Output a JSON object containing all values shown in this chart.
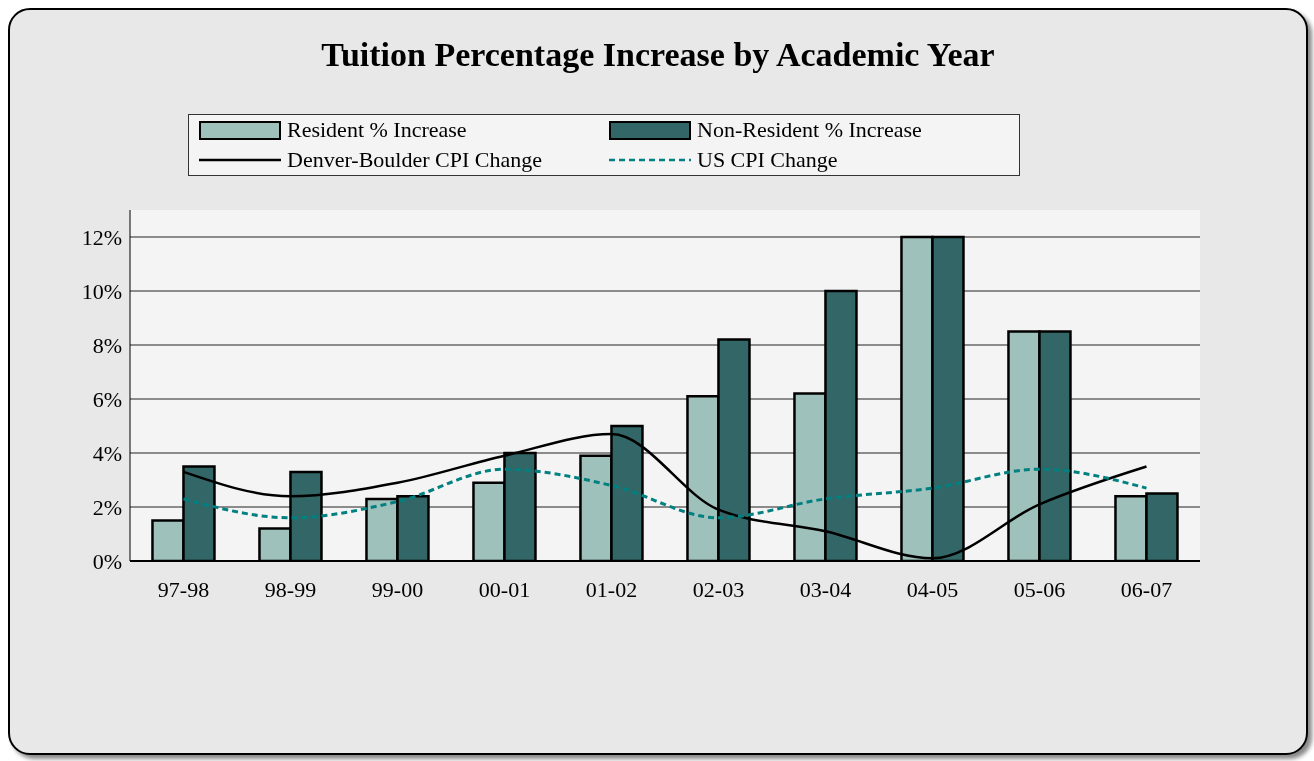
{
  "chart_data": {
    "type": "bar",
    "title": "Tuition Percentage Increase by Academic Year",
    "categories": [
      "97-98",
      "98-99",
      "99-00",
      "00-01",
      "01-02",
      "02-03",
      "03-04",
      "04-05",
      "05-06",
      "06-07"
    ],
    "series": [
      {
        "name": "Resident % Increase",
        "color": "#9fc1bb",
        "values": [
          1.5,
          1.2,
          2.3,
          2.9,
          3.9,
          6.1,
          6.2,
          12.0,
          8.5,
          2.4
        ]
      },
      {
        "name": "Non-Resident % Increase",
        "color": "#336666",
        "values": [
          3.5,
          3.3,
          2.4,
          4.0,
          5.0,
          8.2,
          10.0,
          12.0,
          8.5,
          2.5
        ]
      },
      {
        "name": "Denver-Boulder CPI Change",
        "type": "line",
        "color": "#000000",
        "line_style": "solid",
        "values": [
          3.3,
          2.4,
          2.9,
          3.9,
          4.7,
          1.9,
          1.1,
          0.1,
          2.1,
          3.5
        ]
      },
      {
        "name": "US CPI Change",
        "type": "line",
        "color": "#008080",
        "line_style": "dashed",
        "values": [
          2.3,
          1.6,
          2.2,
          3.4,
          2.8,
          1.6,
          2.3,
          2.7,
          3.4,
          2.7
        ]
      }
    ],
    "ylim": [
      0,
      13
    ],
    "yticks": [
      {
        "value": 0,
        "label": "0%"
      },
      {
        "value": 2,
        "label": "2%"
      },
      {
        "value": 4,
        "label": "4%"
      },
      {
        "value": 6,
        "label": "6%"
      },
      {
        "value": 8,
        "label": "8%"
      },
      {
        "value": 10,
        "label": "10%"
      },
      {
        "value": 12,
        "label": "12%"
      }
    ],
    "grid": "y",
    "legend": "top",
    "marker": "none"
  }
}
